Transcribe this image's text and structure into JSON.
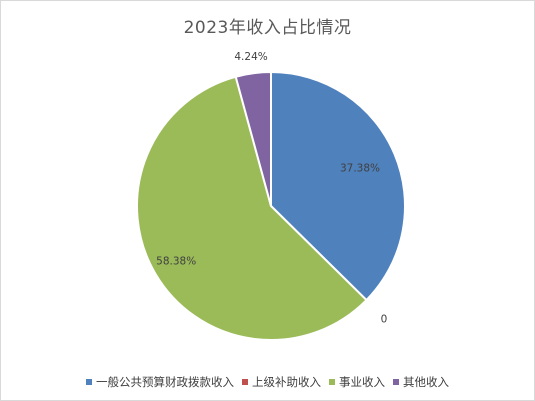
{
  "chart_data": {
    "type": "pie",
    "title": "2023年收入占比情况",
    "series": [
      {
        "name": "一般公共预算财政拨款收入",
        "value": 37.38,
        "label": "37.38%",
        "color": "#4f81bd"
      },
      {
        "name": "上级补助收入",
        "value": 0,
        "label": "0",
        "color": "#c0504d"
      },
      {
        "name": "事业收入",
        "value": 58.38,
        "label": "58.38%",
        "color": "#9bbb59"
      },
      {
        "name": "其他收入",
        "value": 4.24,
        "label": "4.24%",
        "color": "#8064a2"
      }
    ],
    "legend_position": "bottom"
  }
}
